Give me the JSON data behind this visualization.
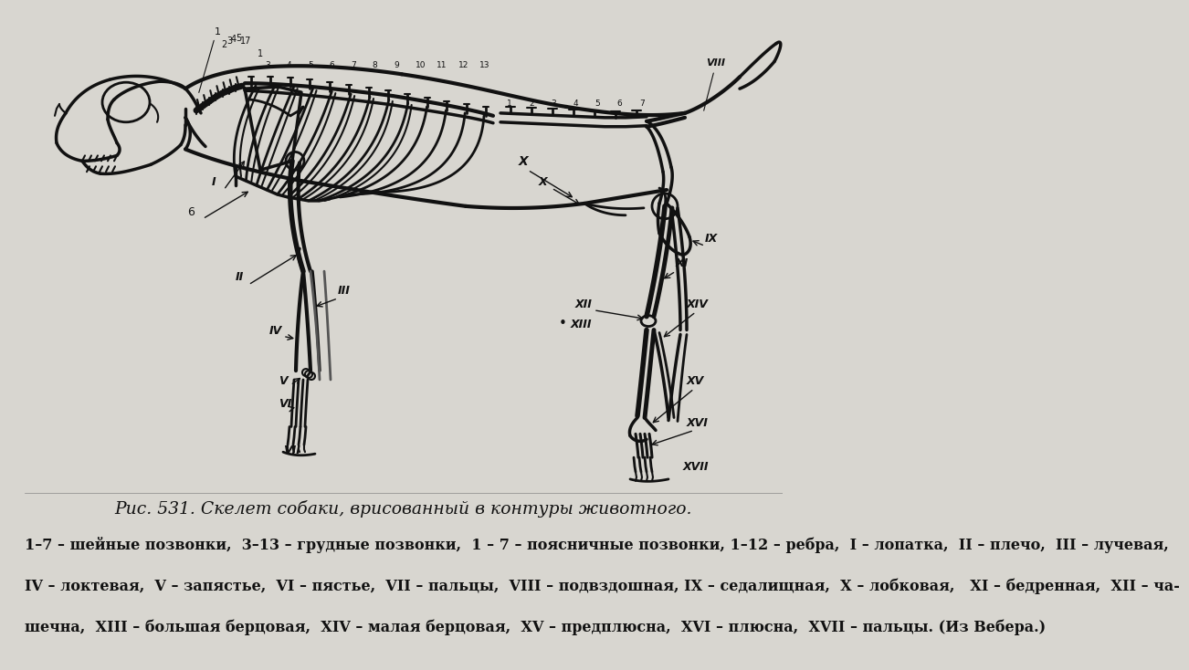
{
  "title": "Рис. 531. Скелет собаки, врисованный в контуры животного.",
  "caption_line1": "1–7 – шейные позвонки,  3–13 – грудные позвонки,  1 – 7 – поясничные позвонки, 1–12 – ребра,  I – лопатка,  II – плечо,  III – лучевая,",
  "caption_line2": "IV – локтевая,  V – запястье,  VI – пястье,  VII – пальцы,  VIII – подвздошная, IX – седалищная,  X – лобковая,   XI – бедренная,  XII – ча-",
  "caption_line3": "шечна,  XIII – большая берцовая,  XIV – малая берцовая,  XV – предплюсна,  XVI – плюсна,  XVII – пальцы. (Из Вебера.)",
  "bg_color": "#d8d6d0",
  "text_color": "#111111",
  "title_fontsize": 13.5,
  "caption_fontsize": 11.5,
  "skeleton_color": "#111111",
  "label_color": "#111111",
  "img_bg": "#dcdad4"
}
